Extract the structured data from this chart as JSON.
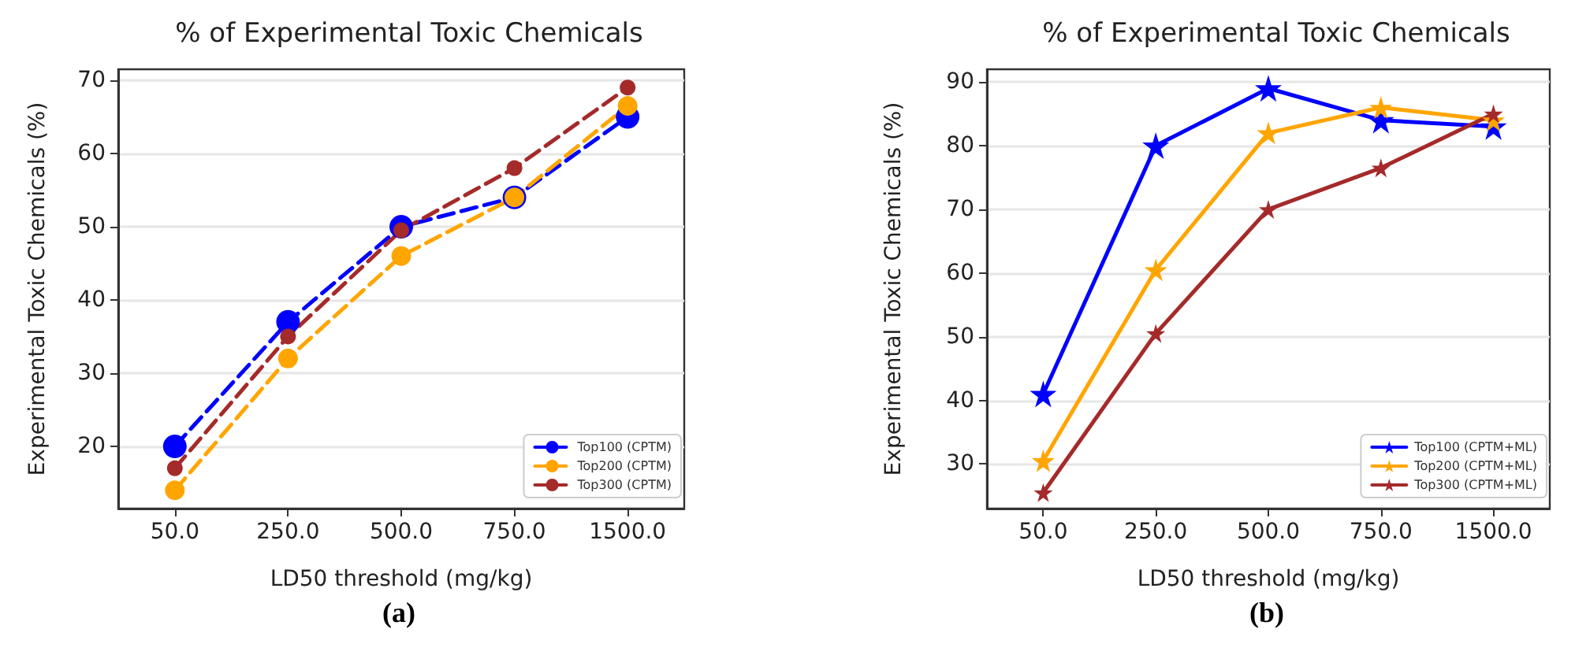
{
  "chart_data": [
    {
      "type": "line",
      "title": "% of Experimental Toxic Chemicals",
      "xlabel": "LD50 threshold (mg/kg)",
      "ylabel": "Experimental Toxic Chemicals (%)",
      "annotations": [
        "(a)"
      ],
      "categories": [
        "50.0",
        "250.0",
        "500.0",
        "750.0",
        "1500.0"
      ],
      "series": [
        {
          "name": "Top100 (CPTM)",
          "color": "#0000ff",
          "values": [
            20,
            37,
            50,
            54,
            65
          ]
        },
        {
          "name": "Top200 (CPTM)",
          "color": "#ffa500",
          "values": [
            14,
            32,
            46,
            54,
            66.5
          ]
        },
        {
          "name": "Top300 (CPTM)",
          "color": "#a52a2a",
          "values": [
            17,
            35,
            49.5,
            58,
            69
          ]
        }
      ],
      "ylim": [
        11.5,
        71.5
      ],
      "yticks": [
        20,
        30,
        40,
        50,
        60,
        70
      ],
      "grid": "y",
      "legend": "bottom right",
      "marker": "circle",
      "line_style": "dashed"
    },
    {
      "type": "line",
      "title": "% of Experimental Toxic Chemicals",
      "xlabel": "LD50 threshold (mg/kg)",
      "ylabel": "Experimental Toxic Chemicals (%)",
      "annotations": [
        "(b)"
      ],
      "categories": [
        "50.0",
        "250.0",
        "500.0",
        "750.0",
        "1500.0"
      ],
      "series": [
        {
          "name": "Top100 (CPTM+ML)",
          "color": "#0000ff",
          "values": [
            41,
            80,
            89,
            84,
            83
          ]
        },
        {
          "name": "Top200 (CPTM+ML)",
          "color": "#ffa500",
          "values": [
            30.5,
            60.5,
            82,
            86,
            84
          ]
        },
        {
          "name": "Top300 (CPTM+ML)",
          "color": "#a52a2a",
          "values": [
            25.5,
            50.5,
            70,
            76.5,
            85
          ]
        }
      ],
      "ylim": [
        23,
        92
      ],
      "yticks": [
        30,
        40,
        50,
        60,
        70,
        80,
        90
      ],
      "grid": "y",
      "legend": "bottom right",
      "marker": "star",
      "line_style": "solid"
    }
  ]
}
